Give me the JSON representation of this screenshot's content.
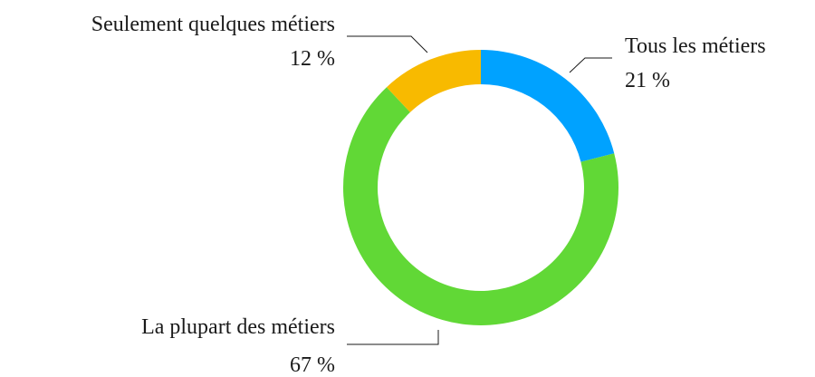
{
  "chart_data": {
    "type": "pie",
    "style": "donut",
    "title": "",
    "slices": [
      {
        "label": "Tous les métiers",
        "value": 21,
        "value_label": "21 %",
        "color": "#00a2ff"
      },
      {
        "label": "La plupart des métiers",
        "value": 67,
        "value_label": "67 %",
        "color": "#61d836"
      },
      {
        "label": "Seulement quelques métiers",
        "value": 12,
        "value_label": "12 %",
        "color": "#f8ba00"
      }
    ]
  }
}
